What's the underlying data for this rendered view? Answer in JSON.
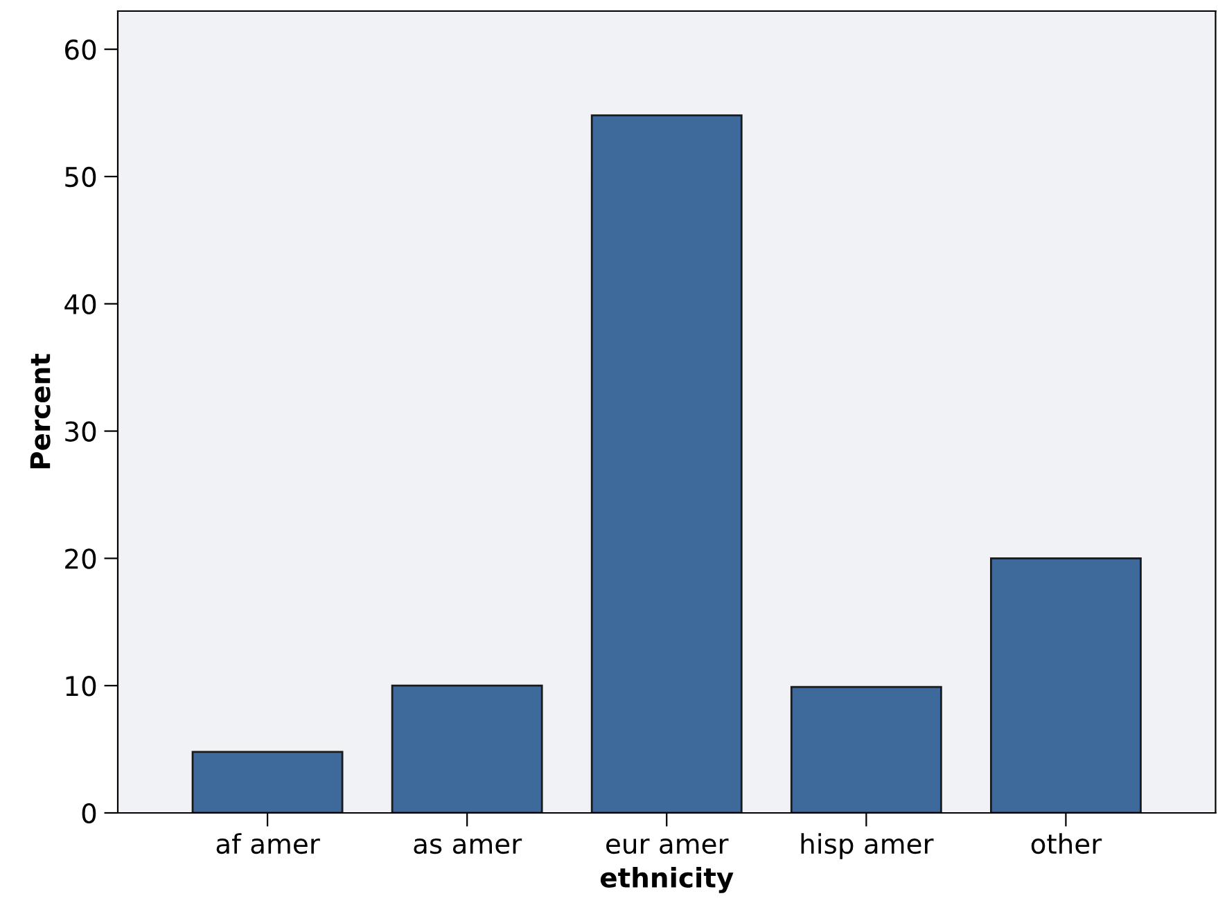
{
  "chart_data": {
    "type": "bar",
    "xlabel": "ethnicity",
    "ylabel": "Percent",
    "categories": [
      "af amer",
      "as amer",
      "eur amer",
      "hisp amer",
      "other"
    ],
    "values": [
      4.8,
      10.0,
      54.8,
      9.9,
      20.0
    ],
    "color": "#3d6a9b",
    "ylim": [
      0,
      63
    ],
    "yticks": [
      0,
      10,
      20,
      30,
      40,
      50,
      60
    ],
    "grid": false,
    "legend": false
  }
}
